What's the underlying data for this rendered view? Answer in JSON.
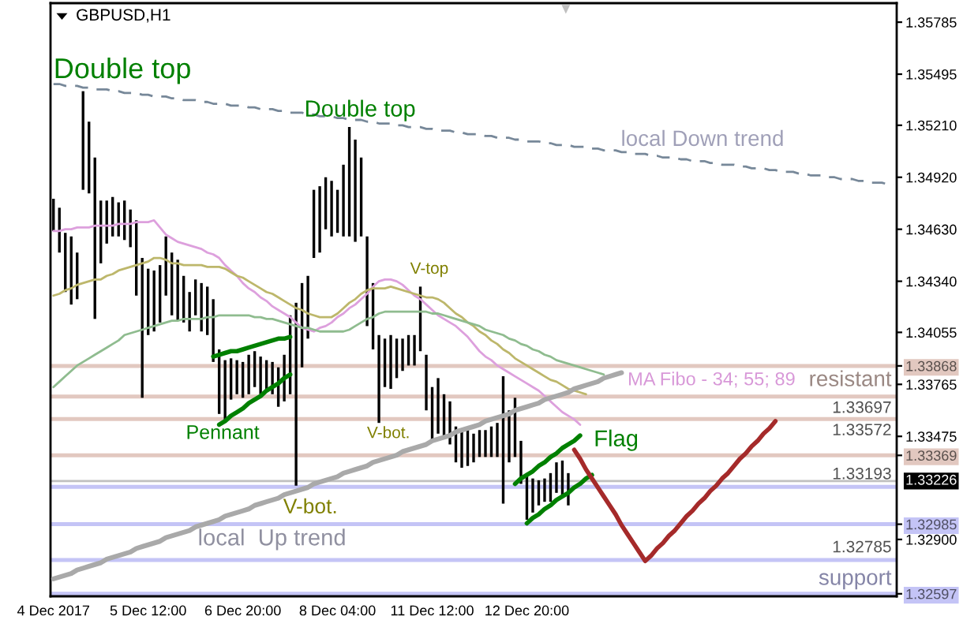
{
  "chart_data": {
    "type": "bar",
    "title": "GBPUSD,H1",
    "categories": [
      "4 Dec 2017",
      null,
      null,
      null,
      null,
      null,
      null,
      null,
      null,
      null,
      null,
      null,
      null,
      null,
      null,
      null,
      "5 Dec 12:00",
      null,
      null,
      null,
      null,
      null,
      null,
      null,
      null,
      null,
      null,
      null,
      null,
      null,
      null,
      null,
      "6 Dec 20:00",
      null,
      null,
      null,
      null,
      null,
      null,
      null,
      null,
      null,
      null,
      null,
      null,
      null,
      null,
      null,
      "8 Dec 04:00",
      null,
      null,
      null,
      null,
      null,
      null,
      null,
      null,
      null,
      null,
      null,
      null,
      null,
      null,
      null,
      "11 Dec 12:00",
      null,
      null,
      null,
      null,
      null,
      null,
      null,
      null,
      null,
      null,
      null,
      null,
      null,
      null,
      null,
      "12 Dec 20:00",
      null,
      null,
      null,
      null,
      null,
      null,
      null,
      null,
      null,
      null,
      null,
      null,
      null,
      null,
      null,
      null,
      null,
      null,
      null,
      null,
      null,
      null,
      null,
      null,
      null,
      null,
      null,
      null,
      null,
      null,
      null,
      null,
      null,
      null,
      null,
      null,
      null,
      null,
      null,
      null,
      null,
      null,
      null,
      null,
      null,
      null,
      null,
      null,
      null,
      null,
      null,
      null,
      null,
      null,
      null,
      null,
      null,
      null,
      null,
      null,
      null,
      null
    ],
    "ylim": [
      1.32583,
      1.35891
    ],
    "yticks": [
      1.35785,
      1.35495,
      {
        "value": 1.3521,
        "label": "1.35210"
      },
      {
        "value": 1.3492,
        "label": "1.34920"
      },
      {
        "value": 1.3463,
        "label": "1.34630"
      },
      {
        "value": 1.3434,
        "label": "1.34340"
      },
      1.34055,
      1.33868,
      1.33765,
      1.33475,
      1.33369,
      1.32985,
      {
        "value": 1.329,
        "label": "1.32900"
      },
      1.32597
    ],
    "series": [
      {
        "color": "#000000",
        "base": [
          1.3462,
          1.345,
          1.3428,
          1.3421,
          1.3424,
          1.3485,
          1.3483,
          1.3413,
          1.3444,
          1.3455,
          1.3459,
          1.3459,
          1.3457,
          1.3453,
          1.3426,
          1.3369,
          1.3404,
          1.3406,
          1.3411,
          1.3426,
          1.3415,
          1.3412,
          1.3411,
          1.3406,
          1.3415,
          1.3406,
          1.3404,
          1.3389,
          1.336,
          1.3356,
          1.3368,
          1.3371,
          1.3369,
          1.3371,
          1.3375,
          1.3371,
          1.3373,
          1.3371,
          1.3364,
          1.3367,
          1.3371,
          1.332,
          1.3386,
          1.3402,
          1.3447,
          1.345,
          1.3463,
          1.3459,
          1.3461,
          1.3459,
          1.3459,
          1.3456,
          1.3459,
          1.3409,
          1.3396,
          1.3355,
          1.3375,
          1.3374,
          1.338,
          1.3384,
          1.3387,
          1.3387,
          1.3395,
          1.3362,
          1.3345,
          1.3349,
          1.3346,
          1.3343,
          1.3333,
          1.333,
          1.3331,
          1.3333,
          1.3336,
          1.3336,
          1.3336,
          1.3336,
          1.331,
          1.3333,
          1.3336,
          1.3321,
          1.3301,
          1.3305,
          1.3309,
          1.3311,
          1.3311,
          1.3316,
          1.3314,
          1.3309,
          null,
          null,
          null,
          null,
          null,
          null,
          null,
          null,
          null,
          null,
          null,
          null,
          null,
          null,
          null,
          null,
          null,
          null,
          null,
          null,
          null,
          null,
          null,
          null,
          null,
          null,
          null,
          null,
          null,
          null,
          null,
          null,
          null,
          null,
          null,
          null,
          null,
          null,
          null,
          null,
          null,
          null,
          null,
          null,
          null,
          null,
          null,
          null,
          null,
          null,
          null,
          null,
          null,
          null,
          null
        ],
        "values": [
          0.0018,
          0.0025,
          0.0033,
          0.0038,
          0.0026,
          0.0055,
          0.004,
          0.009,
          0.0035,
          0.0024,
          0.0022,
          0.0019,
          0.0022,
          0.0021,
          0.0042,
          0.0078,
          0.0037,
          0.0034,
          0.0032,
          0.0033,
          0.0035,
          0.0034,
          0.0026,
          0.0022,
          0.002,
          0.0027,
          0.0027,
          0.0035,
          0.0036,
          0.0034,
          0.0023,
          0.0019,
          0.002,
          0.0022,
          0.002,
          0.0021,
          0.0017,
          0.0018,
          0.0022,
          0.0026,
          0.0044,
          0.0102,
          0.0047,
          0.0035,
          0.0038,
          0.0037,
          0.0029,
          0.0031,
          0.0024,
          0.004,
          0.0061,
          0.0057,
          0.0044,
          0.005,
          0.0037,
          0.0049,
          0.0027,
          0.003,
          0.0022,
          0.0018,
          0.0017,
          0.0017,
          0.0036,
          0.0031,
          0.003,
          0.0031,
          0.0025,
          0.0024,
          0.002,
          0.0022,
          0.002,
          0.0016,
          0.0015,
          0.0015,
          0.0017,
          0.0019,
          0.0071,
          0.0029,
          0.0033,
          0.0024,
          0.0026,
          0.0019,
          0.0014,
          0.0013,
          0.0016,
          0.0017,
          0.002,
          0.0018,
          null,
          null,
          null,
          null,
          null,
          null,
          null,
          null,
          null,
          null,
          null,
          null,
          null,
          null,
          null,
          null,
          null,
          null,
          null,
          null,
          null,
          null,
          null,
          null,
          null,
          null,
          null,
          null,
          null,
          null,
          null,
          null,
          null,
          null,
          null,
          null,
          null,
          null,
          null,
          null,
          null,
          null,
          null,
          null,
          null,
          null,
          null,
          null,
          null,
          null,
          null,
          null,
          null,
          null,
          null
        ]
      },
      {
        "type": "line",
        "color": "#dda0dd",
        "values": [
          1.3462,
          1.3462,
          1.3463,
          1.3463,
          1.3464,
          1.3464,
          1.3464,
          1.3465,
          1.3465,
          1.3465,
          1.3465,
          1.3466,
          1.3466,
          1.3466,
          1.3467,
          1.3467,
          1.3467,
          1.3468,
          1.3464,
          1.346,
          1.3458,
          1.3456,
          1.3455,
          1.3454,
          1.3453,
          1.3452,
          1.345,
          1.3449,
          1.3447,
          1.3443,
          1.344,
          1.3437,
          1.3433,
          1.343,
          1.3428,
          1.3425,
          1.3423,
          1.342,
          1.3418,
          1.3416,
          1.3414,
          1.3411,
          1.3408,
          1.3407,
          1.3406,
          1.3408,
          1.3409,
          1.3411,
          1.3414,
          1.3416,
          1.3419,
          1.3421,
          1.3424,
          1.3427,
          1.3431,
          1.3434,
          1.3435,
          1.3435,
          1.3434,
          1.3432,
          1.3429,
          1.3426,
          1.3424,
          1.3421,
          1.3418,
          1.3415,
          1.3413,
          1.3411,
          1.3409,
          1.3406,
          1.3403,
          1.3399,
          1.3395,
          1.3392,
          1.339,
          1.3387,
          1.3385,
          1.3383,
          1.3381,
          1.3379,
          1.3377,
          1.3375,
          1.3373,
          1.337,
          1.3367,
          1.3364,
          1.3361,
          1.3359,
          1.3357,
          1.3354,
          null,
          null,
          null,
          null,
          null,
          null,
          null,
          null,
          null,
          null,
          null,
          null,
          null,
          null,
          null,
          null,
          null,
          null,
          null,
          null,
          null,
          null,
          null,
          null,
          null,
          null,
          null,
          null,
          null,
          null,
          null,
          null,
          null,
          null,
          null,
          null,
          null,
          null,
          null,
          null,
          null,
          null,
          null,
          null,
          null,
          null,
          null,
          null,
          null,
          null,
          null,
          null,
          null
        ]
      },
      {
        "type": "line",
        "color": "#bdb76b",
        "values": [
          1.3426,
          1.3427,
          1.3429,
          1.343,
          1.3432,
          1.3433,
          1.3434,
          1.3435,
          1.3435,
          1.3437,
          1.3438,
          1.344,
          1.3441,
          1.3442,
          1.3443,
          1.3444,
          1.3445,
          1.3447,
          1.3447,
          1.3446,
          1.3444,
          1.3444,
          1.3443,
          1.3443,
          1.3443,
          1.3443,
          1.3442,
          1.3442,
          1.3442,
          1.3441,
          1.3439,
          1.3437,
          1.3436,
          1.3434,
          1.3432,
          1.343,
          1.3428,
          1.3427,
          1.3425,
          1.3423,
          1.3421,
          1.3419,
          1.3418,
          1.3416,
          1.3415,
          1.3414,
          1.3414,
          1.3414,
          1.3416,
          1.3419,
          1.3422,
          1.3424,
          1.3427,
          1.3429,
          1.343,
          1.343,
          1.343,
          1.3431,
          1.343,
          1.3429,
          1.3428,
          1.3427,
          1.3426,
          1.3425,
          1.3425,
          1.3424,
          1.3422,
          1.3419,
          1.3416,
          1.3414,
          1.3411,
          1.3409,
          1.3406,
          1.3404,
          1.3401,
          1.3399,
          1.3396,
          1.3394,
          1.3391,
          1.3389,
          1.3387,
          1.3385,
          1.3383,
          1.3381,
          1.3379,
          1.3378,
          1.3376,
          1.3374,
          1.3373,
          1.3372,
          1.3371,
          null,
          null,
          null,
          null,
          null,
          null,
          null,
          null,
          null,
          null,
          null,
          null,
          null,
          null,
          null,
          null,
          null,
          null,
          null,
          null,
          null,
          null,
          null,
          null,
          null,
          null,
          null,
          null,
          null,
          null,
          null,
          null,
          null,
          null,
          null,
          null,
          null,
          null,
          null,
          null,
          null,
          null,
          null,
          null,
          null,
          null,
          null,
          null,
          null,
          null,
          null,
          null
        ]
      },
      {
        "type": "line",
        "color": "#8fbc8f",
        "values": [
          1.3375,
          1.3378,
          1.3381,
          1.3384,
          1.3387,
          1.3389,
          1.3391,
          1.3393,
          1.3395,
          1.3397,
          1.3399,
          1.3401,
          1.3404,
          1.3405,
          1.3406,
          1.3407,
          1.3408,
          1.3409,
          1.341,
          1.3411,
          1.3412,
          1.3412,
          1.3413,
          1.3413,
          1.3413,
          1.3413,
          1.3414,
          1.3414,
          1.3415,
          1.3415,
          1.3415,
          1.3415,
          1.3415,
          1.3415,
          1.3414,
          1.3414,
          1.3413,
          1.3413,
          1.3412,
          1.3411,
          1.341,
          1.3409,
          1.3408,
          1.3408,
          1.3407,
          1.3406,
          1.3406,
          1.3406,
          1.3406,
          1.3406,
          1.3407,
          1.3409,
          1.3411,
          1.3413,
          1.3414,
          1.3416,
          1.3417,
          1.3417,
          1.3417,
          1.3417,
          1.3417,
          1.3417,
          1.3417,
          1.3417,
          1.3416,
          1.3416,
          1.3415,
          1.3414,
          1.3413,
          1.3412,
          1.3411,
          1.341,
          1.3409,
          1.3407,
          1.3406,
          1.3405,
          1.3404,
          1.3402,
          1.3401,
          1.3399,
          1.3398,
          1.3396,
          1.3395,
          1.3393,
          1.3392,
          1.339,
          1.3389,
          1.3388,
          1.3387,
          1.3386,
          1.3385,
          1.3384,
          1.3383,
          1.3382,
          null,
          null,
          null,
          null,
          null,
          null,
          null,
          null,
          null,
          null,
          null,
          null,
          null,
          null,
          null,
          null,
          null,
          null,
          null,
          null,
          null,
          null,
          null,
          null,
          null,
          null,
          null,
          null,
          null,
          null,
          null,
          null,
          null,
          null,
          null,
          null,
          null,
          null,
          null,
          null,
          null,
          null,
          null,
          null,
          null,
          null,
          null,
          null,
          null
        ]
      },
      {
        "type": "line",
        "color": "#778899",
        "line_style": "dashed",
        "values": [
          1.3544,
          1.3544,
          1.3543,
          1.3543,
          1.3543,
          1.3542,
          1.3542,
          1.3541,
          1.3541,
          1.3541,
          1.354,
          1.354,
          1.3539,
          1.3539,
          1.3539,
          1.3538,
          1.3538,
          1.3537,
          1.3537,
          1.3537,
          1.3536,
          1.3536,
          1.3535,
          1.3535,
          1.3535,
          1.3534,
          1.3534,
          1.3533,
          1.3533,
          1.3533,
          1.3532,
          1.3532,
          1.3532,
          1.3531,
          1.3531,
          1.353,
          1.353,
          1.353,
          1.3529,
          1.3529,
          1.3528,
          1.3528,
          1.3528,
          1.3527,
          1.3527,
          1.3526,
          1.3526,
          1.3526,
          1.3525,
          1.3525,
          1.3524,
          1.3524,
          1.3524,
          1.3523,
          1.3523,
          1.3522,
          1.3522,
          1.3522,
          1.3521,
          1.3521,
          1.352,
          1.352,
          1.352,
          1.3519,
          1.3519,
          1.3518,
          1.3518,
          1.3518,
          1.3517,
          1.3517,
          1.3516,
          1.3516,
          1.3516,
          1.3515,
          1.3515,
          1.3514,
          1.3514,
          1.3514,
          1.3513,
          1.3513,
          1.3512,
          1.3512,
          1.3512,
          1.3511,
          1.3511,
          1.351,
          1.351,
          1.351,
          1.3509,
          1.3509,
          1.3509,
          1.3508,
          1.3508,
          1.3507,
          1.3507,
          1.3507,
          1.3506,
          1.3506,
          1.3505,
          1.3505,
          1.3505,
          1.3504,
          1.3504,
          1.3503,
          1.3503,
          1.3503,
          1.3502,
          1.3502,
          1.3501,
          1.3501,
          1.3501,
          1.35,
          1.35,
          1.3499,
          1.3499,
          1.3499,
          1.3498,
          1.3498,
          1.3497,
          1.3497,
          1.3497,
          1.3496,
          1.3496,
          1.3495,
          1.3495,
          1.3495,
          1.3494,
          1.3494,
          1.3493,
          1.3493,
          1.3493,
          1.3492,
          1.3492,
          1.3491,
          1.3491,
          1.3491,
          1.349,
          1.349,
          1.3489,
          1.3489,
          1.3489,
          1.3488,
          1.3488
        ]
      },
      {
        "type": "line",
        "color": "#a9a9a9",
        "values": [
          1.3268,
          1.3269,
          1.327,
          1.3271,
          1.3273,
          1.3274,
          1.3275,
          1.3276,
          1.3277,
          1.3279,
          1.328,
          1.3281,
          1.3282,
          1.3283,
          1.3285,
          1.3286,
          1.3287,
          1.3288,
          1.3289,
          1.3291,
          1.3292,
          1.3293,
          1.3294,
          1.3295,
          1.3297,
          1.3298,
          1.3299,
          1.33,
          1.3301,
          1.3303,
          1.3304,
          1.3305,
          1.3306,
          1.3307,
          1.3309,
          1.331,
          1.3311,
          1.3312,
          1.3313,
          1.3315,
          1.3316,
          1.3317,
          1.3318,
          1.3319,
          1.3321,
          1.3322,
          1.3323,
          1.3324,
          1.3325,
          1.3327,
          1.3328,
          1.3329,
          1.333,
          1.3331,
          1.3333,
          1.3334,
          1.3335,
          1.3336,
          1.3337,
          1.3339,
          1.334,
          1.3341,
          1.3342,
          1.3343,
          1.3345,
          1.3346,
          1.3347,
          1.3348,
          1.335,
          1.3351,
          1.3352,
          1.3353,
          1.3354,
          1.3356,
          1.3357,
          1.3358,
          1.3359,
          1.336,
          1.3362,
          1.3363,
          1.3364,
          1.3365,
          1.3366,
          1.3368,
          1.3369,
          1.337,
          1.3371,
          1.3372,
          1.3374,
          1.3375,
          1.3376,
          1.3377,
          1.3378,
          1.338,
          1.3381,
          1.3382,
          1.3383,
          null,
          null,
          null,
          null,
          null,
          null,
          null,
          null,
          null,
          null,
          null,
          null,
          null,
          null,
          null,
          null,
          null,
          null,
          null,
          null,
          null,
          null,
          null,
          null,
          null,
          null,
          null,
          null,
          null,
          null,
          null,
          null,
          null,
          null,
          null,
          null,
          null,
          null,
          null,
          null,
          null,
          null,
          null,
          null,
          null,
          null
        ]
      },
      {
        "type": "line",
        "color": "#008000",
        "values": [
          null,
          null,
          null,
          null,
          null,
          null,
          null,
          null,
          null,
          null,
          null,
          null,
          null,
          null,
          null,
          null,
          null,
          null,
          null,
          null,
          null,
          null,
          null,
          null,
          null,
          null,
          null,
          1.3392,
          1.3393,
          1.3394,
          1.3395,
          1.3395,
          1.3396,
          1.3397,
          1.3398,
          1.3399,
          1.34,
          1.3401,
          1.3402,
          1.3402,
          1.3403,
          null,
          null,
          null,
          null,
          null,
          null,
          null,
          null,
          null,
          null,
          null,
          null,
          null,
          null,
          null,
          null,
          null,
          null,
          null,
          null,
          null,
          null,
          null,
          null,
          null,
          null,
          null,
          null,
          null,
          null,
          null,
          null,
          null,
          null,
          null,
          null,
          null,
          null,
          null,
          null,
          null,
          null,
          null,
          null,
          null,
          null,
          null,
          null,
          null,
          null,
          null,
          null,
          null,
          null,
          null,
          null,
          null,
          null,
          null,
          null,
          null,
          null,
          null,
          null,
          null,
          null,
          null,
          null,
          null,
          null,
          null,
          null,
          null,
          null,
          null,
          null,
          null,
          null,
          null,
          null,
          null,
          null,
          null,
          null,
          null,
          null,
          null,
          null,
          null,
          null,
          null,
          null,
          null,
          null,
          null,
          null,
          null,
          null,
          null,
          null,
          null,
          null
        ]
      },
      {
        "type": "line",
        "color": "#008000",
        "values": [
          null,
          null,
          null,
          null,
          null,
          null,
          null,
          null,
          null,
          null,
          null,
          null,
          null,
          null,
          null,
          null,
          null,
          null,
          null,
          null,
          null,
          null,
          null,
          null,
          null,
          null,
          null,
          null,
          1.3354,
          1.3356,
          1.3359,
          1.3361,
          1.3363,
          1.3366,
          1.3368,
          1.337,
          1.3373,
          1.3375,
          1.3377,
          1.338,
          1.3382,
          null,
          null,
          null,
          null,
          null,
          null,
          null,
          null,
          null,
          null,
          null,
          null,
          null,
          null,
          null,
          null,
          null,
          null,
          null,
          null,
          null,
          null,
          null,
          null,
          null,
          null,
          null,
          null,
          null,
          null,
          null,
          null,
          null,
          null,
          null,
          null,
          null,
          null,
          null,
          null,
          null,
          null,
          null,
          null,
          null,
          null,
          null,
          null,
          null,
          null,
          null,
          null,
          null,
          null,
          null,
          null,
          null,
          null,
          null,
          null,
          null,
          null,
          null,
          null,
          null,
          null,
          null,
          null,
          null,
          null,
          null,
          null,
          null,
          null,
          null,
          null,
          null,
          null,
          null,
          null,
          null,
          null,
          null,
          null,
          null,
          null,
          null,
          null,
          null,
          null,
          null,
          null,
          null,
          null,
          null,
          null,
          null,
          null,
          null,
          null,
          null,
          null
        ]
      },
      {
        "type": "line",
        "color": "#008000",
        "values": [
          null,
          null,
          null,
          null,
          null,
          null,
          null,
          null,
          null,
          null,
          null,
          null,
          null,
          null,
          null,
          null,
          null,
          null,
          null,
          null,
          null,
          null,
          null,
          null,
          null,
          null,
          null,
          null,
          null,
          null,
          null,
          null,
          null,
          null,
          null,
          null,
          null,
          null,
          null,
          null,
          null,
          null,
          null,
          null,
          null,
          null,
          null,
          null,
          null,
          null,
          null,
          null,
          null,
          null,
          null,
          null,
          null,
          null,
          null,
          null,
          null,
          null,
          null,
          null,
          null,
          null,
          null,
          null,
          null,
          null,
          null,
          null,
          null,
          null,
          null,
          null,
          null,
          null,
          1.3321,
          1.3324,
          1.3326,
          1.3328,
          1.3331,
          1.3333,
          1.3336,
          1.3338,
          1.3341,
          1.3343,
          1.3345,
          1.3348,
          null,
          null,
          null,
          null,
          null,
          null,
          null,
          null,
          null,
          null,
          null,
          null,
          null,
          null,
          null,
          null,
          null,
          null,
          null,
          null,
          null,
          null,
          null,
          null,
          null,
          null,
          null,
          null,
          null,
          null,
          null,
          null,
          null,
          null,
          null,
          null,
          null,
          null,
          null,
          null,
          null,
          null,
          null,
          null,
          null,
          null,
          null,
          null,
          null,
          null,
          null,
          null,
          null
        ]
      },
      {
        "type": "line",
        "color": "#008000",
        "values": [
          null,
          null,
          null,
          null,
          null,
          null,
          null,
          null,
          null,
          null,
          null,
          null,
          null,
          null,
          null,
          null,
          null,
          null,
          null,
          null,
          null,
          null,
          null,
          null,
          null,
          null,
          null,
          null,
          null,
          null,
          null,
          null,
          null,
          null,
          null,
          null,
          null,
          null,
          null,
          null,
          null,
          null,
          null,
          null,
          null,
          null,
          null,
          null,
          null,
          null,
          null,
          null,
          null,
          null,
          null,
          null,
          null,
          null,
          null,
          null,
          null,
          null,
          null,
          null,
          null,
          null,
          null,
          null,
          null,
          null,
          null,
          null,
          null,
          null,
          null,
          null,
          null,
          null,
          null,
          null,
          1.3299,
          1.3302,
          1.3304,
          1.3307,
          1.3309,
          1.3312,
          1.3314,
          1.3316,
          1.3319,
          1.3321,
          1.3324,
          1.3326,
          null,
          null,
          null,
          null,
          null,
          null,
          null,
          null,
          null,
          null,
          null,
          null,
          null,
          null,
          null,
          null,
          null,
          null,
          null,
          null,
          null,
          null,
          null,
          null,
          null,
          null,
          null,
          null,
          null,
          null,
          null,
          null,
          null,
          null,
          null,
          null,
          null,
          null,
          null,
          null,
          null,
          null,
          null,
          null,
          null,
          null,
          null,
          null,
          null,
          null,
          null
        ]
      },
      {
        "type": "line",
        "color": "#a52a2a",
        "values": [
          null,
          null,
          null,
          null,
          null,
          null,
          null,
          null,
          null,
          null,
          null,
          null,
          null,
          null,
          null,
          null,
          null,
          null,
          null,
          null,
          null,
          null,
          null,
          null,
          null,
          null,
          null,
          null,
          null,
          null,
          null,
          null,
          null,
          null,
          null,
          null,
          null,
          null,
          null,
          null,
          null,
          null,
          null,
          null,
          null,
          null,
          null,
          null,
          null,
          null,
          null,
          null,
          null,
          null,
          null,
          null,
          null,
          null,
          null,
          null,
          null,
          null,
          null,
          null,
          null,
          null,
          null,
          null,
          null,
          null,
          null,
          null,
          null,
          null,
          null,
          null,
          null,
          null,
          null,
          null,
          null,
          null,
          null,
          null,
          null,
          null,
          null,
          null,
          1.334,
          1.3335,
          1.3329,
          1.3324,
          1.3319,
          1.3314,
          1.3309,
          1.3304,
          1.3298,
          1.3293,
          1.3288,
          1.3283,
          1.3278,
          1.3281,
          1.3285,
          1.3288,
          1.3292,
          1.3295,
          1.3299,
          1.3303,
          1.3306,
          1.331,
          1.3313,
          1.3317,
          1.332,
          1.3324,
          1.3327,
          1.3331,
          1.3335,
          1.3338,
          1.3342,
          1.3345,
          1.3349,
          1.3352,
          1.3356,
          null,
          null,
          null,
          null,
          null,
          null,
          null,
          null,
          null,
          null,
          null,
          null,
          null,
          null,
          null,
          null,
          null,
          null,
          null,
          null
        ]
      }
    ],
    "ref_lines": [
      {
        "axis": "y",
        "value": 1.33868,
        "color": "#e2c8c0",
        "label": "resistant"
      },
      {
        "axis": "y",
        "value": 1.33697,
        "color": "#e2c8c0",
        "label": "1.33697"
      },
      {
        "axis": "y",
        "value": 1.33572,
        "color": "#e2c8c0",
        "label": "1.33572"
      },
      {
        "axis": "y",
        "value": 1.33369,
        "color": "#e2c8c0"
      },
      {
        "axis": "y",
        "value": 1.33226,
        "color": "#c0c0c0"
      },
      {
        "axis": "y",
        "value": 1.33193,
        "color": "#c4c4f6",
        "label": "1.33193"
      },
      {
        "axis": "y",
        "value": 1.32985,
        "color": "#c4c4f6"
      },
      {
        "axis": "y",
        "value": 1.32785,
        "color": "#c4c4f6",
        "label": "1.32785"
      },
      {
        "axis": "y",
        "value": 1.32597,
        "color": "#c4c4f6",
        "label": "support"
      }
    ],
    "annotations": [
      "Double top",
      "Double top",
      "local Down trend",
      "V-top",
      "Pennant",
      "V-bot.",
      "V-bot.",
      "local  Up trend",
      "MA Fibo - 34; 55; 89",
      "Flag",
      "1.33226"
    ]
  }
}
